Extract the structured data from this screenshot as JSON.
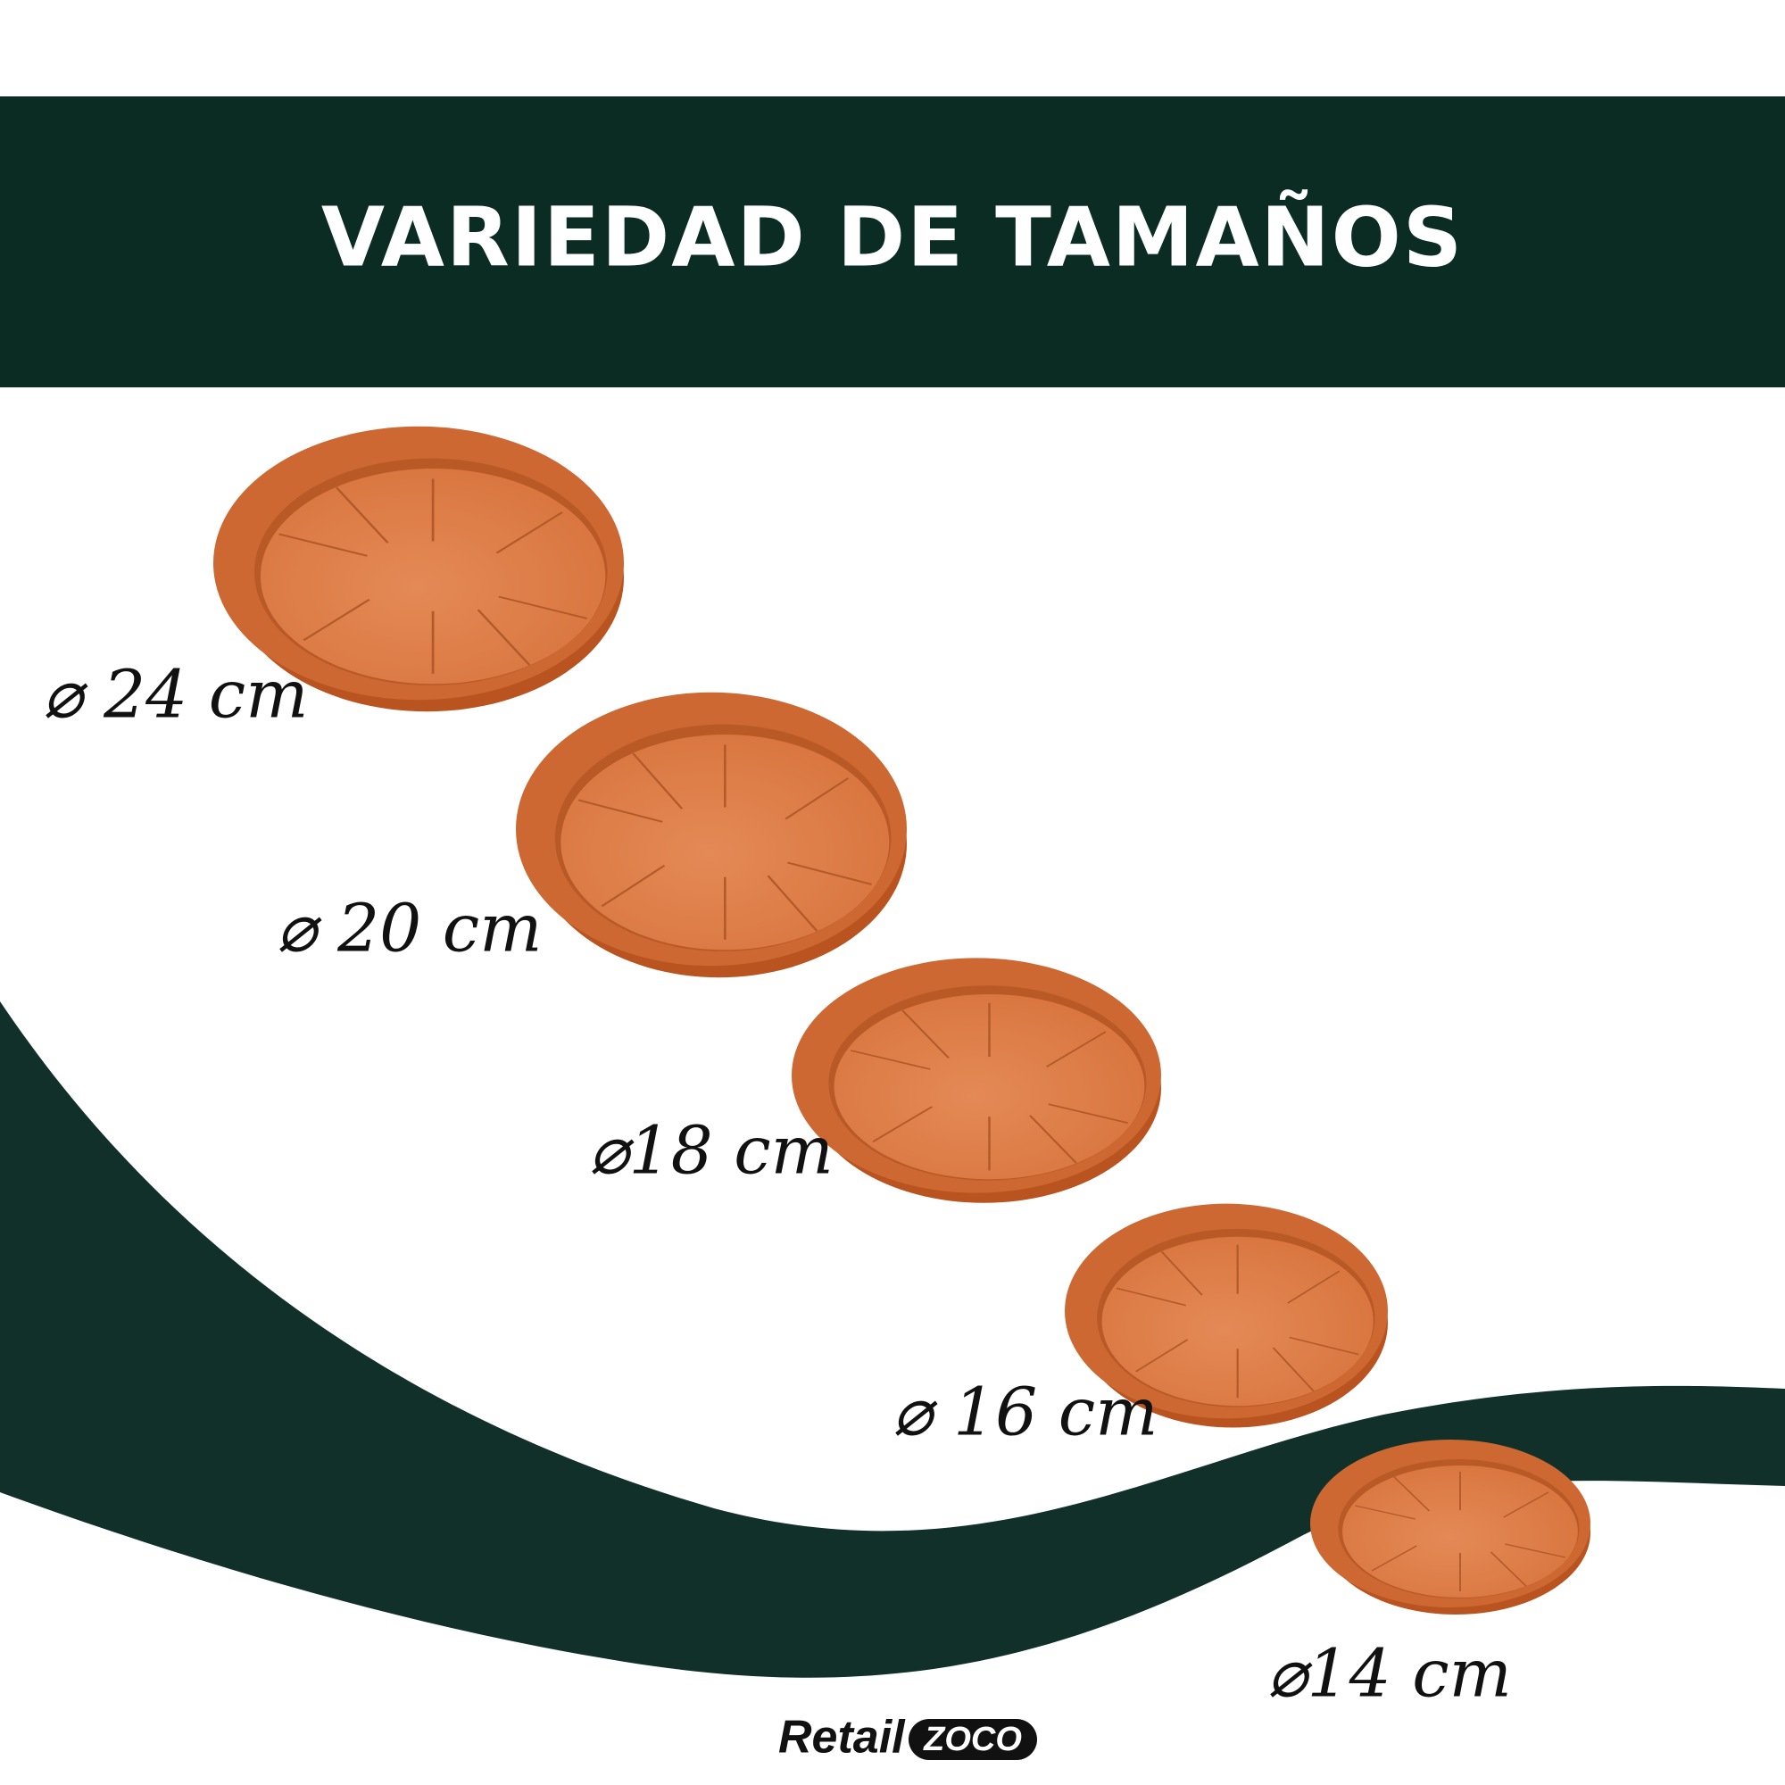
{
  "header": {
    "title": "VARIEDAD DE TAMAÑOS"
  },
  "sizes": [
    {
      "label": "⌀ 24 cm"
    },
    {
      "label": "⌀ 20 cm"
    },
    {
      "label": "⌀18 cm"
    },
    {
      "label": "⌀ 16 cm"
    },
    {
      "label": "⌀14 cm"
    }
  ],
  "logo": {
    "brand": "Retail",
    "badge": "ZOCO"
  }
}
